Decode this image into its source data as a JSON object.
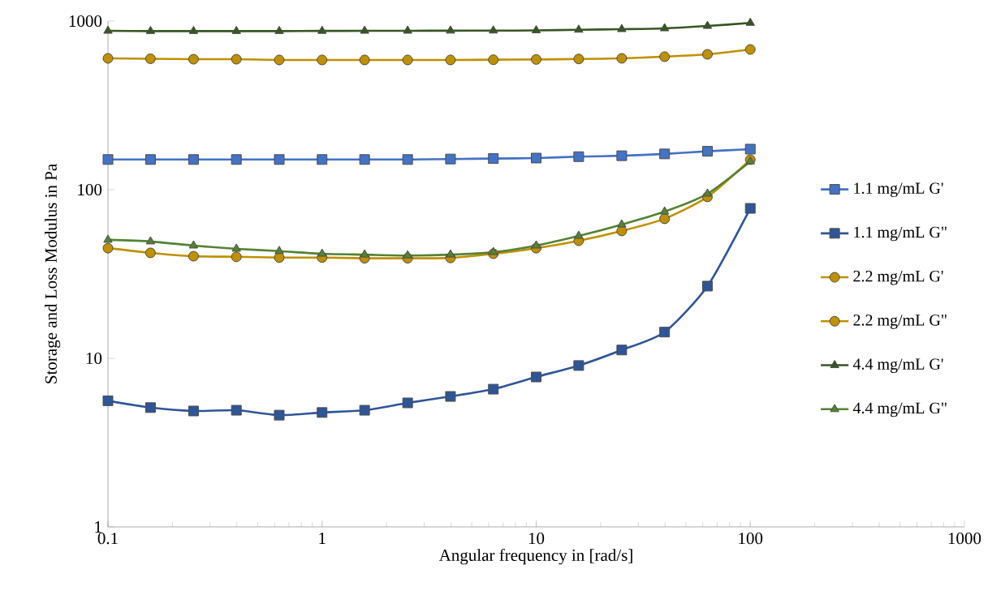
{
  "chart_data": {
    "type": "line",
    "xlabel": "Angular frequency in [rad/s]",
    "ylabel": "Storage and Loss Modulus in Pa",
    "log": "xy",
    "grid": false,
    "legend": "right",
    "x": [
      0.1,
      0.158,
      0.251,
      0.398,
      0.631,
      1,
      1.58,
      2.51,
      3.98,
      6.31,
      10,
      15.8,
      25.1,
      39.8,
      63.1,
      100
    ],
    "xlim": [
      0.1,
      1000
    ],
    "xticks": [
      0.1,
      1,
      10,
      100,
      1000
    ],
    "ylim": [
      1,
      1000
    ],
    "yticks": [
      1,
      10,
      100,
      1000
    ],
    "series": [
      {
        "name": "1.1 mg/mL G'",
        "color": "#4472c4",
        "marker": "square",
        "values": [
          151,
          151,
          151,
          151,
          151,
          151,
          151,
          151,
          152,
          153,
          154,
          157,
          159,
          163,
          169,
          174
        ]
      },
      {
        "name": "1.1 mg/mL G\"",
        "color": "#2f5597",
        "marker": "square",
        "values": [
          5.6,
          5.1,
          4.87,
          4.92,
          4.6,
          4.77,
          4.92,
          5.44,
          5.94,
          6.56,
          7.75,
          9.06,
          11.2,
          14.3,
          26.8,
          77.5
        ]
      },
      {
        "name": "2.2 mg/mL G'",
        "color": "#bf9000",
        "marker": "circle",
        "values": [
          601,
          598,
          594,
          594,
          588,
          588,
          588,
          588,
          588,
          590,
          592,
          596,
          601,
          615,
          635,
          679
        ]
      },
      {
        "name": "2.2 mg/mL G\"",
        "color": "#bf9000",
        "marker": "circle",
        "values": [
          45,
          42.2,
          40.3,
          40,
          39.6,
          39.6,
          39.2,
          39.2,
          39.4,
          41.7,
          45,
          49.8,
          56.9,
          67.2,
          90.6,
          150.7
        ]
      },
      {
        "name": "4.4 mg/mL G'",
        "color": "#375623",
        "marker": "triangle",
        "values": [
          875,
          872,
          872,
          872,
          872,
          874,
          875,
          876,
          877,
          878,
          880,
          888,
          895,
          905,
          935,
          975
        ]
      },
      {
        "name": "4.4 mg/mL G\"",
        "color": "#548235",
        "marker": "triangle",
        "values": [
          50.4,
          49.3,
          46.6,
          44.6,
          43.2,
          41.7,
          41.2,
          40.7,
          41.2,
          42.6,
          46.6,
          53.2,
          62.1,
          74.1,
          94.6,
          147
        ]
      }
    ]
  }
}
